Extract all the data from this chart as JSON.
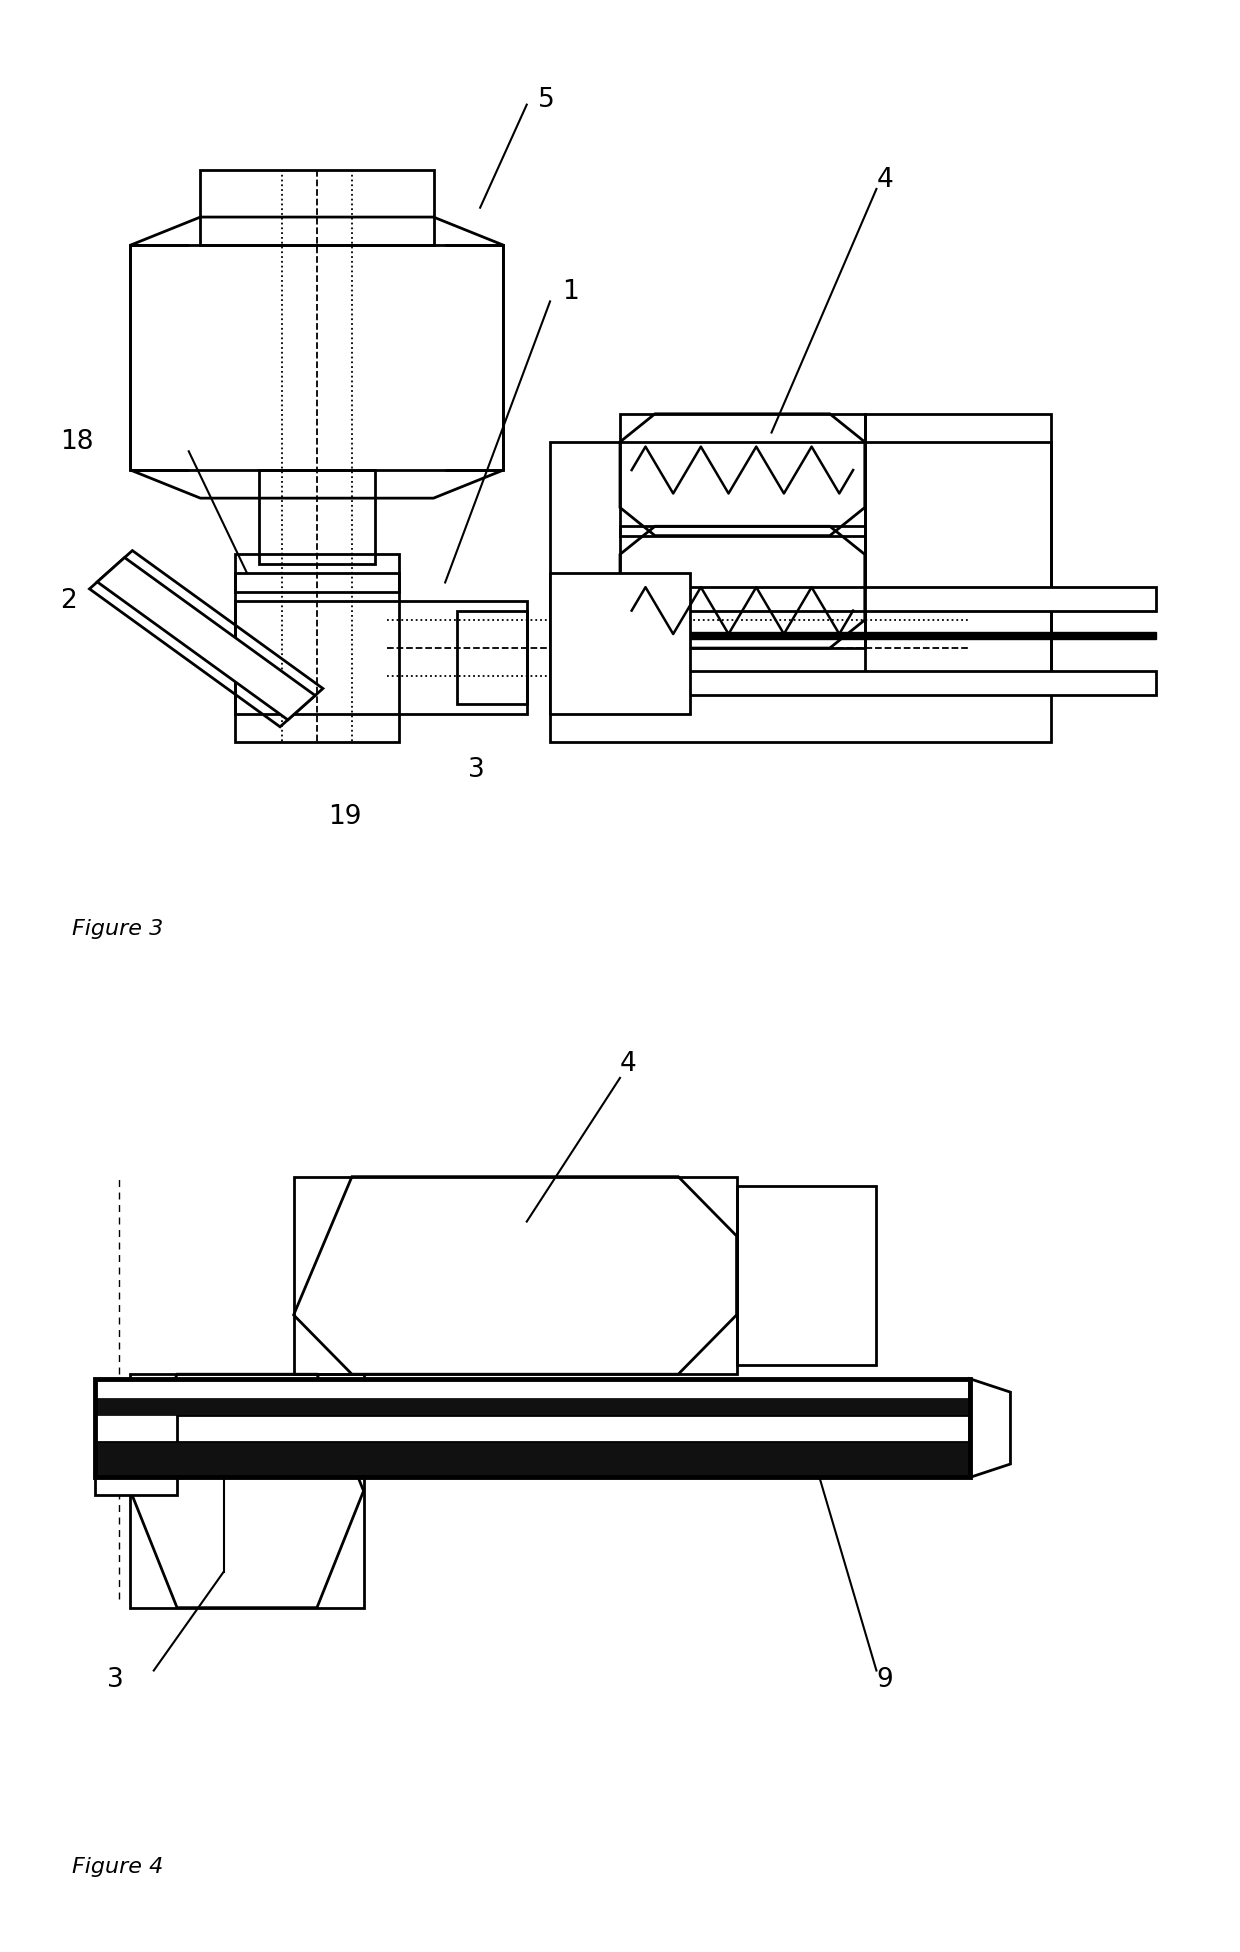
{
  "fig_width": 12.4,
  "fig_height": 19.52,
  "bg_color": "#ffffff",
  "lw": 2.0,
  "lw_thick": 3.5
}
